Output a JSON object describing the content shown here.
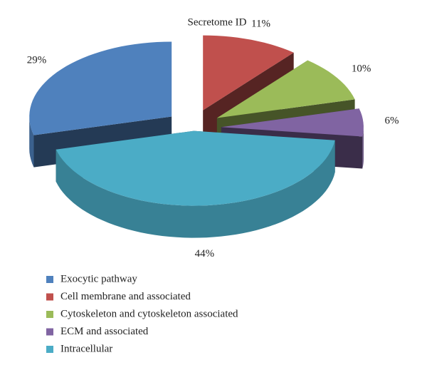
{
  "chart_data": {
    "type": "pie",
    "title": "Secretome ID",
    "categories": [
      "Exocytic pathway",
      "Cell membrane and associated",
      "Cytoskeleton and cytoskeleton associated",
      "ECM and associated",
      "Intracellular"
    ],
    "values": [
      29,
      11,
      10,
      6,
      44
    ],
    "value_labels": [
      "29%",
      "11%",
      "10%",
      "6%",
      "44%"
    ],
    "colors": [
      "#4f81bd",
      "#c0504d",
      "#9bbb59",
      "#8064a2",
      "#4bacc6"
    ],
    "legend": "bottom-left"
  }
}
